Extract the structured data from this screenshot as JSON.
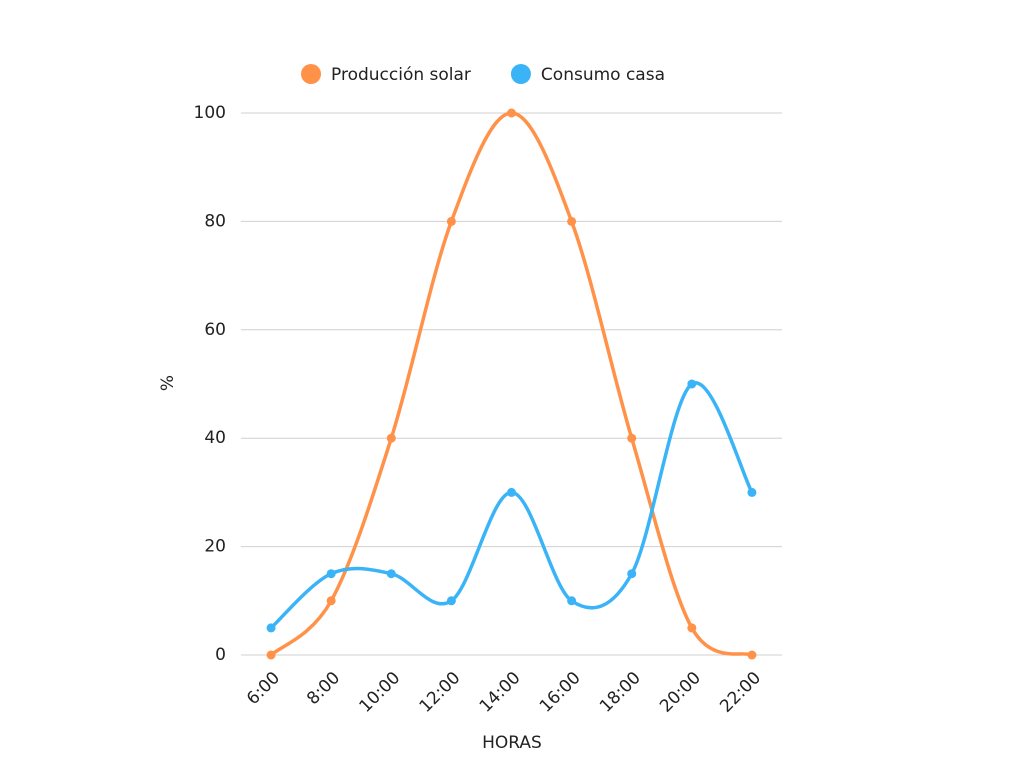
{
  "chart_data": {
    "type": "line",
    "x_label": "HORAS",
    "y_label": "%",
    "categories": [
      "6:00",
      "8:00",
      "10:00",
      "12:00",
      "14:00",
      "16:00",
      "18:00",
      "20:00",
      "22:00"
    ],
    "series": [
      {
        "name": "Producción solar",
        "color": "#ff9149",
        "values": [
          0,
          10,
          40,
          80,
          100,
          80,
          40,
          5,
          0
        ]
      },
      {
        "name": "Consumo casa",
        "color": "#3bb4f7",
        "values": [
          5,
          15,
          15,
          10,
          30,
          10,
          15,
          50,
          30
        ]
      }
    ],
    "ylim": [
      0,
      100
    ],
    "yticks": [
      0,
      20,
      40,
      60,
      80,
      100
    ],
    "grid": true,
    "legend": "top"
  }
}
